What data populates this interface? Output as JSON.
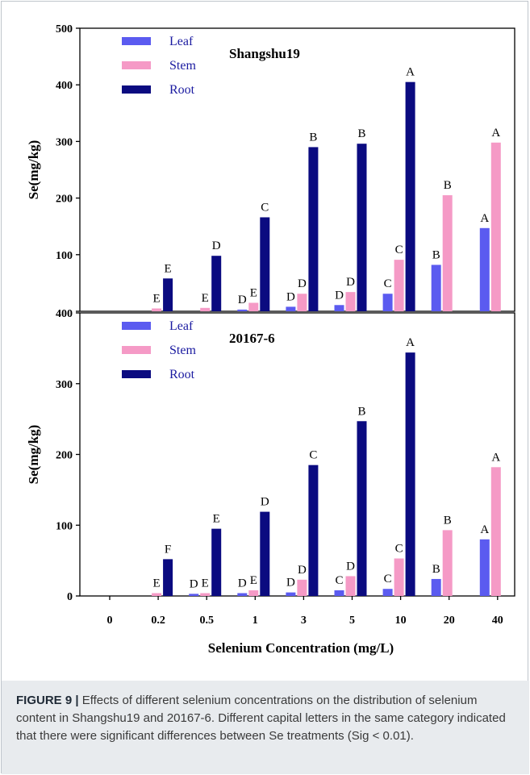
{
  "colors": {
    "leaf": "#5b5bf0",
    "stem": "#f59ac6",
    "root": "#0b0b80"
  },
  "chart_data": {
    "type": "bar",
    "xlabel": "Selenium Concentration (mg/L)",
    "categories": [
      "0",
      "0.2",
      "0.5",
      "1",
      "3",
      "5",
      "10",
      "20",
      "40"
    ],
    "panels": [
      {
        "title": "Shangshu19",
        "ylabel": "Se(mg/kg)",
        "ylim": [
          0,
          500
        ],
        "yticks": [
          "0",
          "100",
          "200",
          "300",
          "400",
          "500"
        ],
        "legend_position": "top-left",
        "series": [
          {
            "name": "Leaf",
            "values": [
              null,
              null,
              null,
              3,
              8,
              11,
              31,
              82,
              147
            ],
            "letters": [
              "",
              "",
              "",
              "D",
              "D",
              "D",
              "C",
              "B",
              "A"
            ]
          },
          {
            "name": "Stem",
            "values": [
              null,
              5,
              6,
              15,
              31,
              34,
              91,
              205,
              298
            ],
            "letters": [
              "",
              "E",
              "E",
              "E",
              "D",
              "D",
              "C",
              "B",
              "A"
            ]
          },
          {
            "name": "Root",
            "values": [
              null,
              58,
              98,
              166,
              290,
              296,
              405,
              null,
              null
            ],
            "letters": [
              "",
              "E",
              "D",
              "C",
              "B",
              "B",
              "A",
              "",
              ""
            ]
          }
        ]
      },
      {
        "title": "20167-6",
        "ylabel": "Se(mg/kg)",
        "ylim": [
          0,
          400
        ],
        "yticks": [
          "0",
          "100",
          "200",
          "300",
          "400"
        ],
        "legend_position": "top-left",
        "series": [
          {
            "name": "Leaf",
            "values": [
              null,
              null,
              3,
              4,
              5,
              8,
              10,
              24,
              80
            ],
            "letters": [
              "",
              "",
              "D",
              "D",
              "D",
              "C",
              "C",
              "B",
              "A"
            ]
          },
          {
            "name": "Stem",
            "values": [
              null,
              4,
              4,
              8,
              23,
              28,
              53,
              93,
              182
            ],
            "letters": [
              "",
              "E",
              "E",
              "E",
              "D",
              "D",
              "C",
              "B",
              "A"
            ]
          },
          {
            "name": "Root",
            "values": [
              null,
              52,
              95,
              119,
              185,
              247,
              344,
              null,
              null
            ],
            "letters": [
              "",
              "F",
              "E",
              "D",
              "C",
              "B",
              "A",
              "",
              ""
            ]
          }
        ]
      }
    ]
  },
  "caption": {
    "label": "FIGURE 9 |",
    "text": "Effects of different selenium concentrations on the distribution of selenium content in Shangshu19 and 20167-6. Different capital letters in the same category indicated that there were significant differences between Se treatments (Sig < 0.01)."
  }
}
